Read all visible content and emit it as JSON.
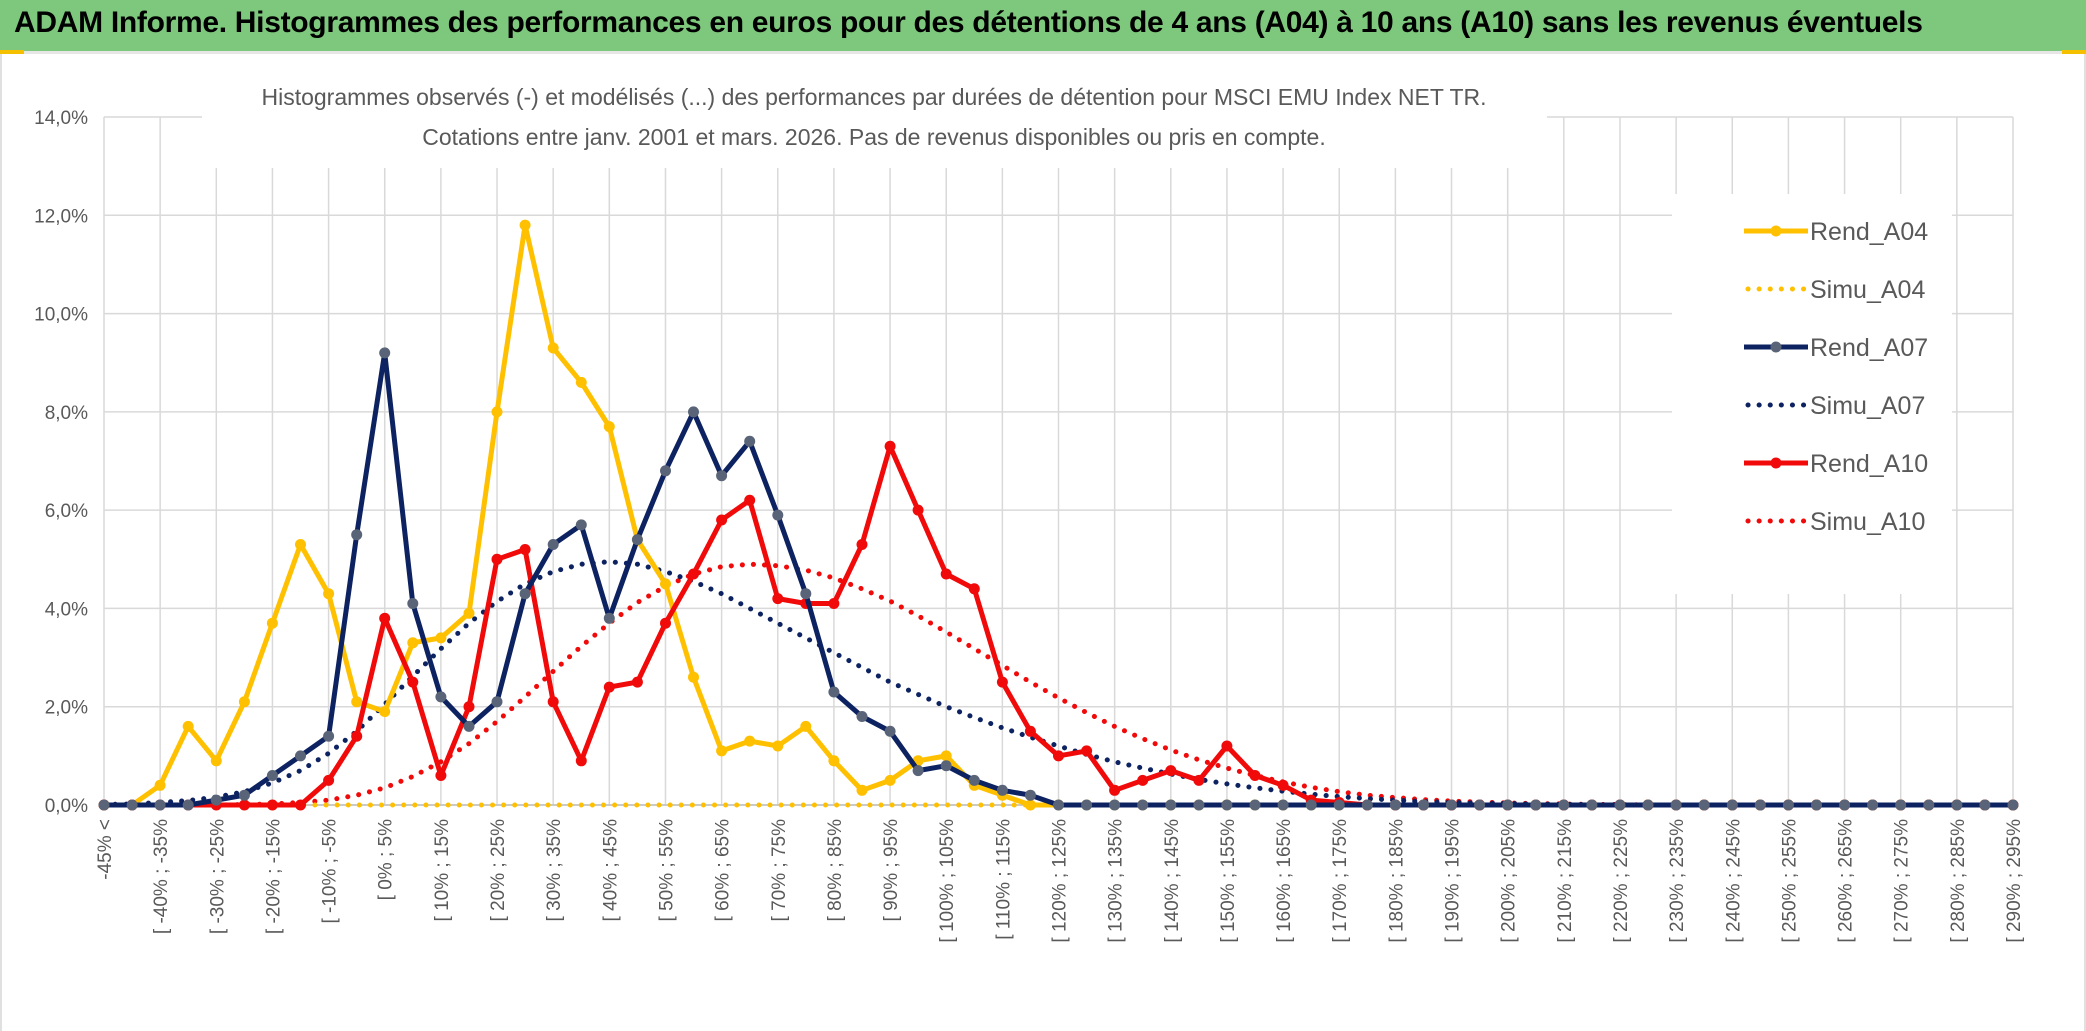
{
  "header": {
    "title": "ADAM Informe. Histogrammes des performances en euros pour des détentions de 4 ans (A04) à 10 ans (A10) sans les revenus éventuels"
  },
  "colors": {
    "header_bg": "#7dc87c",
    "A04": "#ffc000",
    "A07": "#0d2260",
    "A07_marker": "#5a6478",
    "A10": "#f00a0a",
    "grid": "#d9d9d9"
  },
  "chart_data": {
    "type": "line",
    "title": "Histogrammes observés (-) et modélisés (...) des performances par durées de détention pour MSCI EMU Index NET TR.",
    "subtitle": "Cotations entre janv. 2001 et mars. 2026. Pas de revenus disponibles ou pris en compte.",
    "xlabel": "",
    "ylabel": "",
    "ylim": [
      0,
      14
    ],
    "yticks": [
      "0,0%",
      "2,0%",
      "4,0%",
      "6,0%",
      "8,0%",
      "10,0%",
      "12,0%",
      "14,0%"
    ],
    "grid": true,
    "legend_position": "right",
    "x_tick_labels": [
      "-45% <",
      "[ -40% ; -35%",
      "[ -30% ; -25%",
      "[ -20% ; -15%",
      "[ -10% ; -5%",
      "[ 0% ; 5%",
      "[ 10% ; 15%",
      "[ 20% ; 25%",
      "[ 30% ; 35%",
      "[ 40% ; 45%",
      "[ 50% ; 55%",
      "[ 60% ; 65%",
      "[ 70% ; 75%",
      "[ 80% ; 85%",
      "[ 90% ; 95%",
      "[ 100% ; 105%",
      "[ 110% ; 115%",
      "[ 120% ; 125%",
      "[ 130% ; 135%",
      "[ 140% ; 145%",
      "[ 150% ; 155%",
      "[ 160% ; 165%",
      "[ 170% ; 175%",
      "[ 180% ; 185%",
      "[ 190% ; 195%",
      "[ 200% ; 205%",
      "[ 210% ; 215%",
      "[ 220% ; 225%",
      "[ 230% ; 235%",
      "[ 240% ; 245%",
      "[ 250% ; 255%",
      "[ 260% ; 265%",
      "[ 270% ; 275%",
      "[ 280% ; 285%",
      "[ 290% ; 295%"
    ],
    "n_bins": 69,
    "series": [
      {
        "name": "Rend_A04",
        "style": "solid",
        "color": "#ffc000",
        "values": [
          0,
          0,
          0.4,
          1.6,
          0.9,
          2.1,
          3.7,
          5.3,
          4.3,
          2.1,
          1.9,
          3.3,
          3.4,
          3.9,
          8.0,
          11.8,
          9.3,
          8.6,
          7.7,
          5.4,
          4.5,
          2.6,
          1.1,
          1.3,
          1.2,
          1.6,
          0.9,
          0.3,
          0.5,
          0.9,
          1.0,
          0.4,
          0.2,
          0,
          0,
          0,
          0,
          0,
          0,
          0,
          0,
          0,
          0,
          0,
          0,
          0,
          0,
          0,
          0,
          0,
          0,
          0,
          0,
          0,
          0,
          0,
          0,
          0,
          0,
          0,
          0,
          0,
          0,
          0,
          0,
          0,
          0,
          0,
          0
        ]
      },
      {
        "name": "Simu_A04",
        "style": "dotted",
        "color": "#ffc000",
        "values": [
          0,
          0,
          0,
          0,
          0,
          0,
          0,
          0,
          0,
          0,
          0,
          0,
          0,
          0,
          0,
          0,
          0,
          0,
          0,
          0,
          0,
          0,
          0,
          0,
          0,
          0,
          0,
          0,
          0,
          0,
          0,
          0,
          0,
          0,
          0,
          0,
          0,
          0,
          0,
          0,
          0,
          0,
          0,
          0,
          0,
          0,
          0,
          0,
          0,
          0,
          0,
          0,
          0,
          0,
          0,
          0,
          0,
          0,
          0,
          0,
          0,
          0,
          0,
          0,
          0,
          0,
          0,
          0,
          0
        ]
      },
      {
        "name": "Rend_A07",
        "style": "solid",
        "color": "#0d2260",
        "values": [
          0,
          0,
          0,
          0,
          0.1,
          0.2,
          0.6,
          1.0,
          1.4,
          5.5,
          9.2,
          4.1,
          2.2,
          1.6,
          2.1,
          4.3,
          5.3,
          5.7,
          3.8,
          5.4,
          6.8,
          8.0,
          6.7,
          7.4,
          5.9,
          4.3,
          2.3,
          1.8,
          1.5,
          0.7,
          0.8,
          0.5,
          0.3,
          0.2,
          0,
          0,
          0,
          0,
          0,
          0,
          0,
          0,
          0,
          0,
          0,
          0,
          0,
          0,
          0,
          0,
          0,
          0,
          0,
          0,
          0,
          0,
          0,
          0,
          0,
          0,
          0,
          0,
          0,
          0,
          0,
          0,
          0,
          0,
          0
        ]
      },
      {
        "name": "Simu_A07",
        "style": "dotted",
        "color": "#0d2260",
        "values": [
          0.01,
          0.02,
          0.05,
          0.09,
          0.16,
          0.27,
          0.45,
          0.7,
          1.05,
          1.5,
          2.05,
          2.62,
          3.18,
          3.7,
          4.14,
          4.5,
          4.75,
          4.9,
          4.95,
          4.9,
          4.75,
          4.55,
          4.3,
          4.0,
          3.7,
          3.4,
          3.1,
          2.8,
          2.5,
          2.25,
          2.0,
          1.78,
          1.57,
          1.38,
          1.2,
          1.03,
          0.88,
          0.75,
          0.63,
          0.52,
          0.43,
          0.35,
          0.28,
          0.22,
          0.17,
          0.13,
          0.1,
          0.07,
          0.05,
          0.04,
          0.03,
          0.02,
          0.01,
          0.01,
          0,
          0,
          0,
          0,
          0,
          0,
          0,
          0,
          0,
          0,
          0,
          0,
          0,
          0,
          0
        ]
      },
      {
        "name": "Rend_A10",
        "style": "solid",
        "color": "#f00a0a",
        "values": [
          0,
          0,
          0,
          0,
          0,
          0,
          0,
          0,
          0.5,
          1.4,
          3.8,
          2.5,
          0.6,
          2.0,
          5.0,
          5.2,
          2.1,
          0.9,
          2.4,
          2.5,
          3.7,
          4.7,
          5.8,
          6.2,
          4.2,
          4.1,
          4.1,
          5.3,
          7.3,
          6.0,
          4.7,
          4.4,
          2.5,
          1.5,
          1.0,
          1.1,
          0.3,
          0.5,
          0.7,
          0.5,
          1.2,
          0.6,
          0.4,
          0.1,
          0.05,
          0,
          0,
          0,
          0,
          0,
          0,
          0,
          0,
          0,
          0,
          0,
          0,
          0,
          0,
          0,
          0,
          0,
          0,
          0,
          0,
          0,
          0,
          0,
          0
        ]
      },
      {
        "name": "Simu_A10",
        "style": "dotted",
        "color": "#f00a0a",
        "values": [
          0,
          0,
          0,
          0,
          0,
          0.01,
          0.02,
          0.05,
          0.1,
          0.2,
          0.35,
          0.58,
          0.88,
          1.25,
          1.7,
          2.2,
          2.72,
          3.23,
          3.7,
          4.12,
          4.45,
          4.7,
          4.85,
          4.9,
          4.87,
          4.78,
          4.62,
          4.4,
          4.15,
          3.85,
          3.52,
          3.18,
          2.84,
          2.5,
          2.18,
          1.88,
          1.6,
          1.35,
          1.12,
          0.92,
          0.75,
          0.6,
          0.47,
          0.36,
          0.27,
          0.2,
          0.15,
          0.11,
          0.08,
          0.06,
          0.04,
          0.03,
          0.02,
          0.01,
          0.01,
          0,
          0,
          0,
          0,
          0,
          0,
          0,
          0,
          0,
          0,
          0,
          0,
          0,
          0
        ]
      }
    ]
  }
}
